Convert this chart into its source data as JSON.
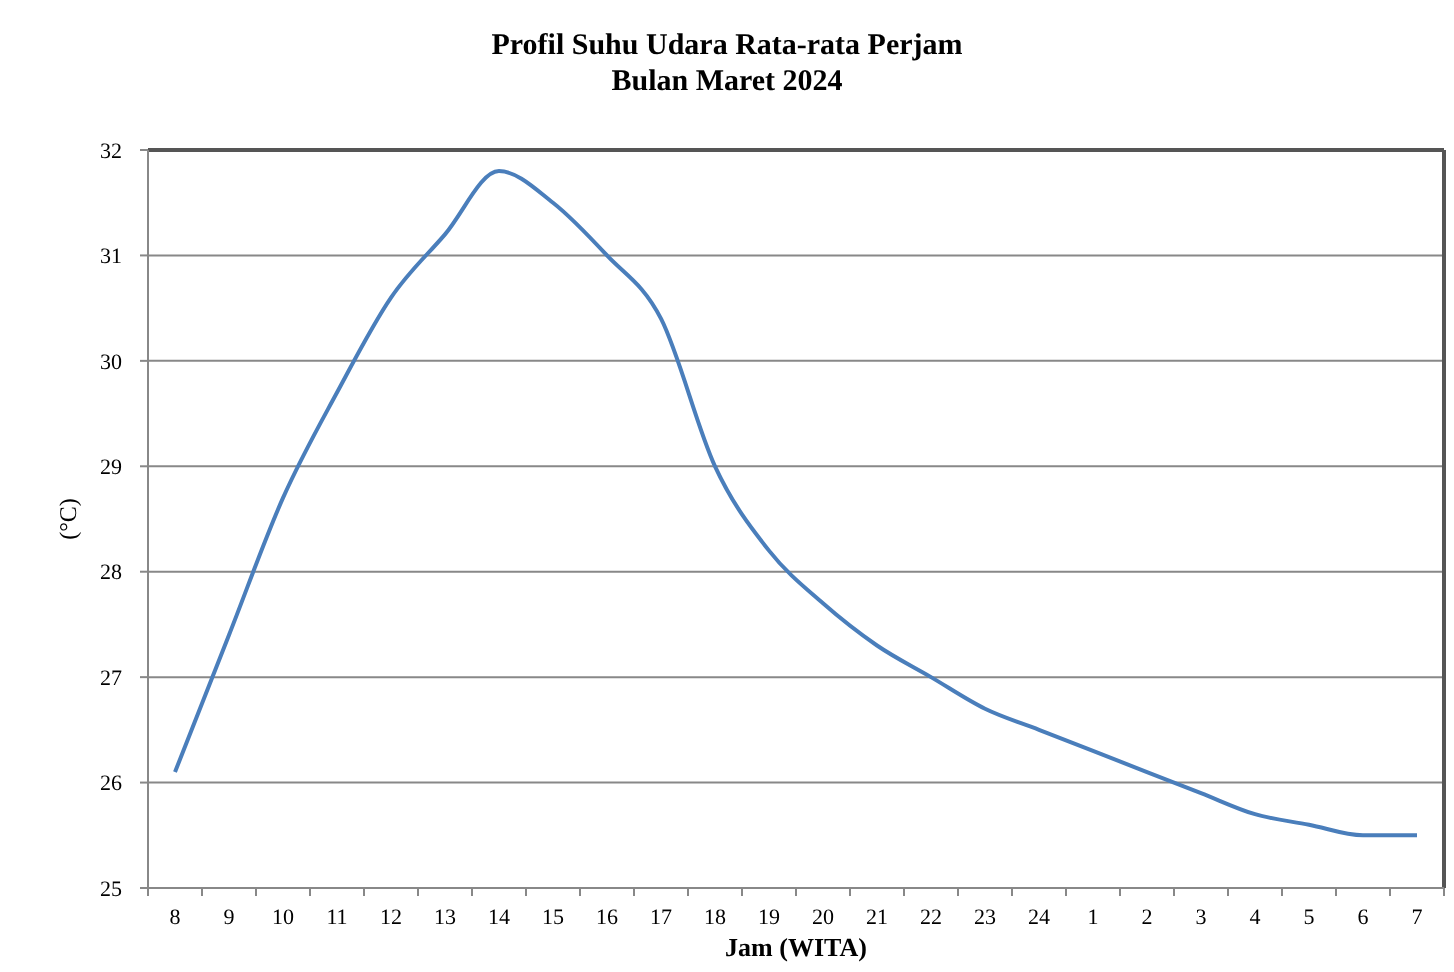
{
  "chart_data": {
    "type": "line",
    "title": "Profil Suhu Udara Rata-rata Perjam",
    "subtitle": "Bulan Maret 2024",
    "xlabel": "Jam (WITA)",
    "ylabel": "(°C)",
    "categories": [
      "8",
      "9",
      "10",
      "11",
      "12",
      "13",
      "14",
      "15",
      "16",
      "17",
      "18",
      "19",
      "20",
      "21",
      "22",
      "23",
      "24",
      "1",
      "2",
      "3",
      "4",
      "5",
      "6",
      "7"
    ],
    "series": [
      {
        "color": "#4a7ebb",
        "values": [
          26.1,
          27.4,
          28.7,
          29.7,
          30.6,
          31.2,
          31.8,
          31.5,
          31.0,
          30.4,
          29.0,
          28.2,
          27.7,
          27.3,
          27.0,
          26.7,
          26.5,
          26.3,
          26.1,
          25.9,
          25.7,
          25.6,
          25.5,
          25.5
        ]
      }
    ],
    "ylim": [
      25,
      32
    ],
    "yticks": [
      25,
      26,
      27,
      28,
      29,
      30,
      31,
      32
    ],
    "grid": "y",
    "marker": "none",
    "line_style": "solid"
  }
}
